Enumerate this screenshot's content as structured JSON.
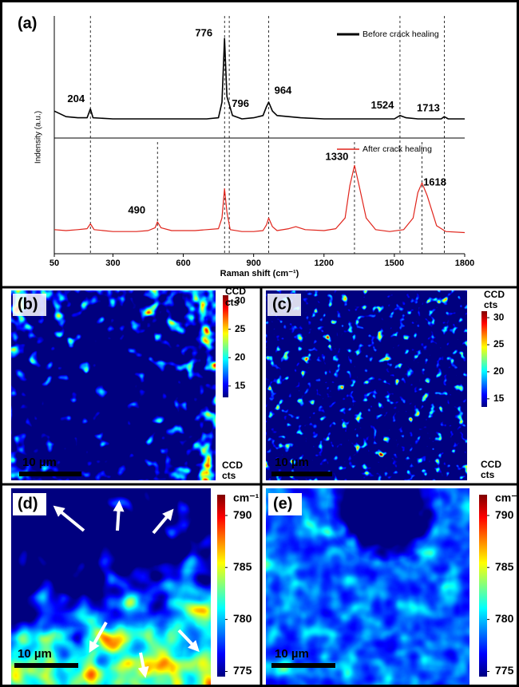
{
  "chart_data": [
    {
      "type": "line",
      "panel_label": "(a)",
      "ylabel": "Indensity (a.u.)",
      "xlim": [
        50,
        1800
      ],
      "ylim": [
        0,
        100
      ],
      "legend": "upper right",
      "series": [
        {
          "name": "Before crack healing",
          "color": "#000000",
          "x": [
            50,
            100,
            150,
            190,
            204,
            215,
            300,
            400,
            500,
            600,
            700,
            750,
            765,
            776,
            786,
            796,
            810,
            850,
            900,
            940,
            955,
            964,
            980,
            1000,
            1100,
            1200,
            1300,
            1400,
            1500,
            1524,
            1550,
            1600,
            1700,
            1713,
            1730,
            1800
          ],
          "values": [
            22,
            17,
            16,
            16,
            24,
            16,
            15,
            15,
            15,
            15,
            15,
            16,
            30,
            87,
            35,
            28,
            18,
            15,
            16,
            18,
            26,
            30,
            22,
            18,
            16,
            15,
            15,
            15,
            15,
            18,
            16,
            15,
            15,
            17,
            15,
            15
          ]
        }
      ],
      "peaks": [
        204,
        776,
        796,
        964,
        1524,
        1713
      ]
    },
    {
      "type": "line",
      "xlabel": "Raman shift (cm⁻¹)",
      "xlim": [
        50,
        1800
      ],
      "xticks": [
        50,
        300,
        600,
        900,
        1200,
        1500,
        1800
      ],
      "ylim": [
        0,
        100
      ],
      "legend": "upper right",
      "series": [
        {
          "name": "After crack healing",
          "color": "#e0241b",
          "x": [
            50,
            100,
            150,
            190,
            204,
            220,
            300,
            400,
            450,
            480,
            490,
            505,
            550,
            650,
            700,
            750,
            765,
            776,
            786,
            800,
            850,
            900,
            940,
            955,
            964,
            980,
            1000,
            1050,
            1080,
            1120,
            1200,
            1250,
            1290,
            1310,
            1330,
            1350,
            1380,
            1420,
            1480,
            1540,
            1580,
            1600,
            1618,
            1640,
            1680,
            1720,
            1800
          ],
          "values": [
            10,
            9,
            10,
            11,
            16,
            10,
            8,
            8,
            9,
            12,
            18,
            12,
            9,
            9,
            10,
            11,
            22,
            52,
            28,
            10,
            8,
            8,
            9,
            15,
            22,
            13,
            9,
            11,
            13,
            10,
            9,
            11,
            22,
            55,
            76,
            55,
            22,
            10,
            8,
            10,
            22,
            48,
            58,
            45,
            14,
            8,
            7
          ]
        }
      ],
      "peaks": [
        490,
        1330,
        1618
      ]
    }
  ],
  "maps": [
    {
      "label": "(b)",
      "colorbar_title": [
        "CCD",
        "cts"
      ],
      "colorbar_footer": [
        "CCD",
        "cts"
      ],
      "clim": [
        13,
        31
      ],
      "ticks": [
        30,
        25,
        20,
        15
      ],
      "scale_bar": "10 µm"
    },
    {
      "label": "(c)",
      "colorbar_title": [
        "CCD",
        "cts"
      ],
      "colorbar_footer": [
        "CCD",
        "cts"
      ],
      "clim": [
        13.5,
        31.2
      ],
      "ticks": [
        30,
        25,
        20,
        15
      ],
      "scale_bar": "10 µm"
    },
    {
      "label": "(d)",
      "colorbar_title": [
        "cm⁻¹"
      ],
      "clim": [
        774.5,
        792
      ],
      "ticks": [
        790,
        785,
        780,
        775
      ],
      "scale_bar": "10 µm"
    },
    {
      "label": "(e)",
      "colorbar_title": [
        "cm⁻¹"
      ],
      "clim": [
        774.5,
        792
      ],
      "ticks": [
        790,
        785,
        780,
        775
      ],
      "scale_bar": "10 µm"
    }
  ]
}
